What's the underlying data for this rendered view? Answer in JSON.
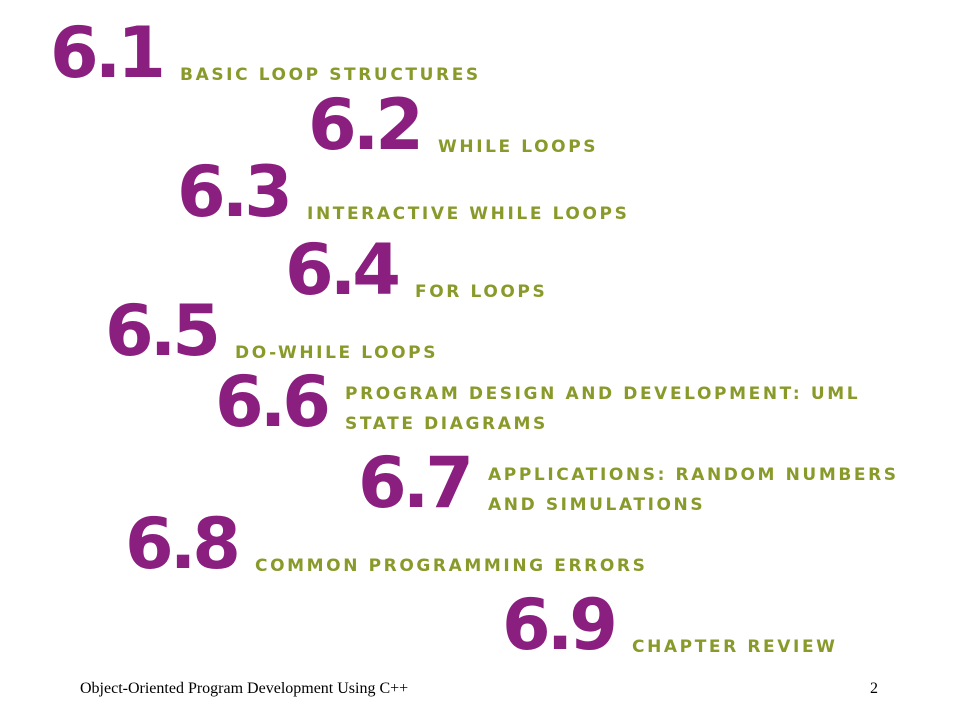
{
  "sections": [
    {
      "number": "6.1",
      "title": "Basic Loop Structures"
    },
    {
      "number": "6.2",
      "title": "While Loops"
    },
    {
      "number": "6.3",
      "title": "Interactive While Loops"
    },
    {
      "number": "6.4",
      "title": "For Loops"
    },
    {
      "number": "6.5",
      "title": "Do-While Loops"
    },
    {
      "number": "6.6",
      "title_line1": "Program Design and Development: UML",
      "title_line2": "State Diagrams"
    },
    {
      "number": "6.7",
      "title_line1": "Applications: Random Numbers",
      "title_line2": "and Simulations"
    },
    {
      "number": "6.8",
      "title": "Common Programming Errors"
    },
    {
      "number": "6.9",
      "title": "Chapter Review"
    }
  ],
  "footer": {
    "course": "Object-Oriented Program Development Using C++",
    "page_number": "2"
  },
  "colors": {
    "number": "#8a1f80",
    "title": "#8a9a2a"
  }
}
